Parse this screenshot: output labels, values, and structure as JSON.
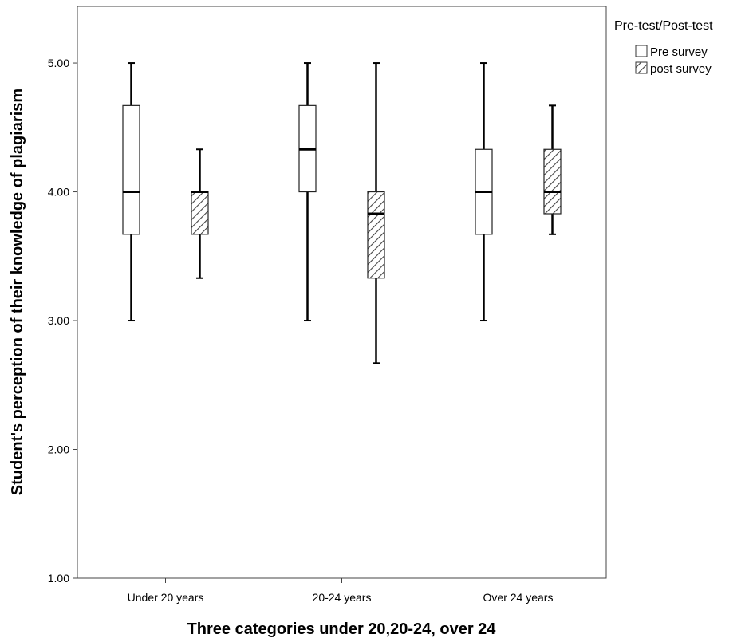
{
  "chart_data": {
    "type": "boxplot",
    "xlabel": "Three categories under 20,20-24, over 24",
    "ylabel": "Student's perception of their knowledge of plagiarism",
    "ylim": [
      1.0,
      5.44
    ],
    "yticks": [
      "1.00",
      "2.00",
      "3.00",
      "4.00",
      "5.00"
    ],
    "ytick_values": [
      1,
      2,
      3,
      4,
      5
    ],
    "categories": [
      "Under 20 years",
      "20-24 years",
      "Over 24 years"
    ],
    "legend": {
      "title": "Pre-test/Post-test",
      "placement": "right",
      "entries": [
        "Pre survey",
        "post survey"
      ]
    },
    "series": [
      {
        "name": "Pre survey",
        "fill": "plain",
        "boxes": [
          {
            "min": 3.0,
            "q1": 3.67,
            "median": 4.0,
            "q3": 4.67,
            "max": 5.0
          },
          {
            "min": 3.0,
            "q1": 4.0,
            "median": 4.33,
            "q3": 4.67,
            "max": 5.0
          },
          {
            "min": 3.0,
            "q1": 3.67,
            "median": 4.0,
            "q3": 4.33,
            "max": 5.0
          }
        ]
      },
      {
        "name": "post survey",
        "fill": "hatched",
        "boxes": [
          {
            "min": 3.33,
            "q1": 3.67,
            "median": 4.0,
            "q3": 4.0,
            "max": 4.33
          },
          {
            "min": 2.67,
            "q1": 3.33,
            "median": 3.83,
            "q3": 4.0,
            "max": 5.0
          },
          {
            "min": 3.67,
            "q1": 3.83,
            "median": 4.0,
            "q3": 4.33,
            "max": 4.67
          }
        ]
      }
    ],
    "grid": false
  }
}
